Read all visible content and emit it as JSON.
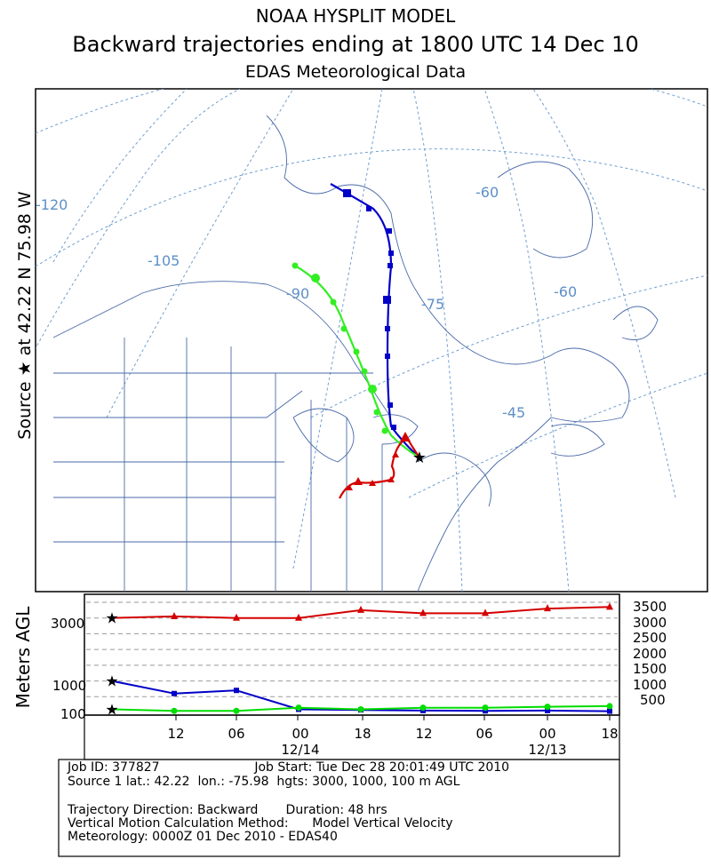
{
  "header": {
    "title": "NOAA HYSPLIT MODEL",
    "subtitle": "Backward trajectories ending at 1800 UTC 14 Dec 10",
    "data_source": "EDAS Meteorological Data"
  },
  "source_label": "Source ★ at   42.22 N    75.98 W",
  "map": {
    "longitude_labels": [
      "-120",
      "-105",
      "-90",
      "-75",
      "-60",
      "-60",
      "-45"
    ],
    "source": {
      "lat": 42.22,
      "lon": -75.98
    }
  },
  "vertical_panel": {
    "ylabel": "Meters AGL",
    "left_ticks": [
      "3000",
      "1000",
      "100"
    ],
    "right_ticks": [
      "3500",
      "3000",
      "2500",
      "2000",
      "1500",
      "1000",
      "500"
    ],
    "time_ticks": [
      "12",
      "06",
      "00",
      "18",
      "12",
      "06",
      "00",
      "18"
    ],
    "date_labels": [
      "12/14",
      "12/13"
    ]
  },
  "chart_data": {
    "type": "line",
    "xlabel": "",
    "ylabel": "Meters AGL",
    "x": [
      0,
      6,
      12,
      18,
      24,
      30,
      36,
      42,
      48
    ],
    "ylim": [
      0,
      3500
    ],
    "series": [
      {
        "name": "",
        "color": "#d40000",
        "start_height_m": 3000,
        "values": [
          3000,
          3050,
          3000,
          3000,
          3250,
          3150,
          3150,
          3300,
          3350
        ]
      },
      {
        "name": "",
        "color": "#0000c8",
        "start_height_m": 1000,
        "values": [
          1000,
          600,
          700,
          100,
          80,
          60,
          50,
          60,
          40
        ]
      },
      {
        "name": "",
        "color": "#00dd00",
        "start_height_m": 100,
        "values": [
          100,
          50,
          50,
          150,
          100,
          150,
          150,
          180,
          200
        ]
      }
    ]
  },
  "job_info": {
    "line1": "Job ID: 377827                        Job Start: Tue Dec 28 20:01:49 UTC 2010",
    "line2": "Source 1 lat.: 42.22  lon.: -75.98  hgts: 3000, 1000, 100 m AGL",
    "line3": "",
    "line4": "Trajectory Direction: Backward       Duration: 48 hrs",
    "line5": "Vertical Motion Calculation Method:      Model Vertical Velocity",
    "line6": "Meteorology: 0000Z 01 Dec 2010 - EDAS40"
  },
  "colors": {
    "red": "#d40000",
    "blue": "#0000c8",
    "green": "#00dd00",
    "graticule": "#6699cc",
    "border": "#000000"
  }
}
